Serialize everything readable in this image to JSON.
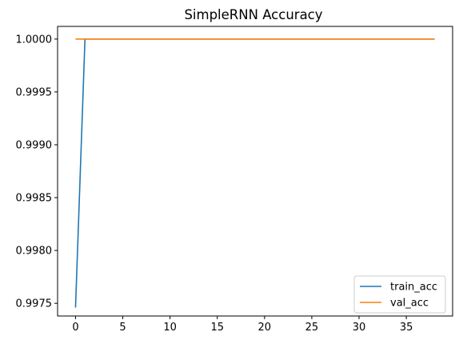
{
  "chart_data": {
    "type": "line",
    "title": "SimpleRNN Accuracy",
    "xlabel": "",
    "ylabel": "",
    "xlim": [
      -1.9,
      39.9
    ],
    "ylim": [
      0.99738,
      1.00012
    ],
    "x_ticks": [
      0,
      5,
      10,
      15,
      20,
      25,
      30,
      35
    ],
    "y_ticks": [
      0.9975,
      0.998,
      0.9985,
      0.999,
      0.9995,
      1.0
    ],
    "y_tick_labels": [
      "0.9975",
      "0.9980",
      "0.9985",
      "0.9990",
      "0.9995",
      "1.0000"
    ],
    "grid": false,
    "legend_position": "lower-right",
    "x": [
      0,
      1,
      2,
      3,
      4,
      5,
      6,
      7,
      8,
      9,
      10,
      11,
      12,
      13,
      14,
      15,
      16,
      17,
      18,
      19,
      20,
      21,
      22,
      23,
      24,
      25,
      26,
      27,
      28,
      29,
      30,
      31,
      32,
      33,
      34,
      35,
      36,
      37,
      38
    ],
    "series": [
      {
        "name": "train_acc",
        "color": "#1f77b4",
        "values": [
          0.99746,
          1,
          1,
          1,
          1,
          1,
          1,
          1,
          1,
          1,
          1,
          1,
          1,
          1,
          1,
          1,
          1,
          1,
          1,
          1,
          1,
          1,
          1,
          1,
          1,
          1,
          1,
          1,
          1,
          1,
          1,
          1,
          1,
          1,
          1,
          1,
          1,
          1,
          1
        ]
      },
      {
        "name": "val_acc",
        "color": "#ff7f0e",
        "values": [
          1,
          1,
          1,
          1,
          1,
          1,
          1,
          1,
          1,
          1,
          1,
          1,
          1,
          1,
          1,
          1,
          1,
          1,
          1,
          1,
          1,
          1,
          1,
          1,
          1,
          1,
          1,
          1,
          1,
          1,
          1,
          1,
          1,
          1,
          1,
          1,
          1,
          1,
          1
        ]
      }
    ]
  }
}
